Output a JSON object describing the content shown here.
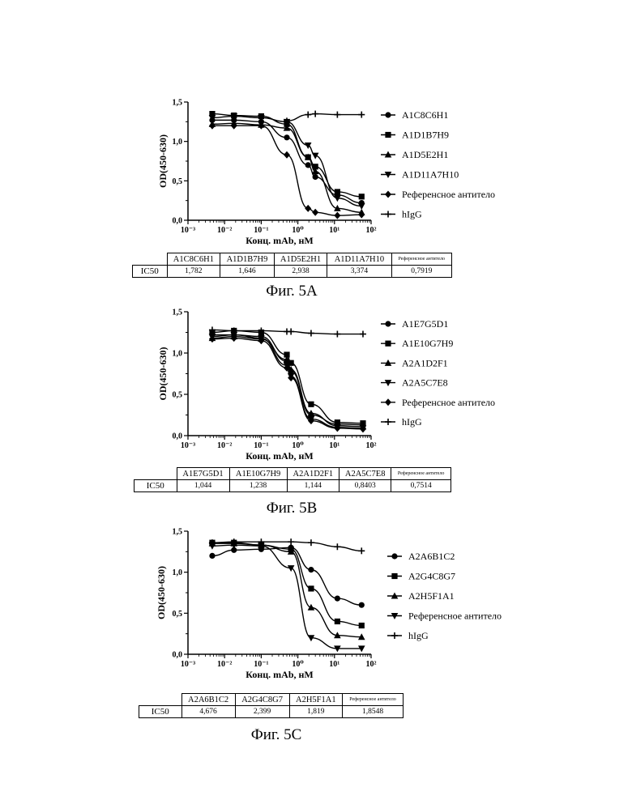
{
  "chart_data": [
    {
      "type": "line",
      "x_scale": "log",
      "xlabel": "Конц. mAb, нМ",
      "ylabel": "OD(450-630)",
      "xlim": [
        0.001,
        100
      ],
      "ylim": [
        0.0,
        1.5
      ],
      "x_ticks": [
        "10⁻³",
        "10⁻²",
        "10⁻¹",
        "10⁰",
        "10¹",
        "10²"
      ],
      "y_ticks": [
        "0,0",
        "0,5",
        "1,0",
        "1,5"
      ],
      "legend_position": "right",
      "x": [
        0.0046,
        0.018,
        0.1,
        0.5,
        1.9,
        3.0,
        12,
        55
      ],
      "series": [
        {
          "name": "A1C8C6H1",
          "marker": "circle",
          "values": [
            1.27,
            1.27,
            1.25,
            1.05,
            0.7,
            0.55,
            0.32,
            0.22
          ]
        },
        {
          "name": "A1D1B7H9",
          "marker": "square",
          "values": [
            1.35,
            1.33,
            1.32,
            1.22,
            0.8,
            0.68,
            0.36,
            0.3
          ]
        },
        {
          "name": "A1D5E2H1",
          "marker": "triangle-up",
          "values": [
            1.22,
            1.23,
            1.21,
            1.17,
            0.8,
            0.62,
            0.15,
            0.1
          ]
        },
        {
          "name": "A1D11A7H10",
          "marker": "triangle-down",
          "values": [
            1.3,
            1.32,
            1.3,
            1.25,
            0.95,
            0.82,
            0.28,
            0.18
          ]
        },
        {
          "name": "Референсное антитело",
          "marker": "diamond",
          "values": [
            1.2,
            1.2,
            1.2,
            0.83,
            0.15,
            0.1,
            0.06,
            0.07
          ]
        },
        {
          "name": "hIgG",
          "marker": "plus",
          "values": [
            null,
            null,
            null,
            1.26,
            1.34,
            1.35,
            1.34,
            1.34
          ]
        }
      ],
      "ic50_table": {
        "row_label": "IC50",
        "headers": [
          "A1C8C6H1",
          "A1D1B7H9",
          "A1D5E2H1",
          "A1D11A7H10",
          "Референсное антитело"
        ],
        "values": [
          "1,782",
          "1,646",
          "2,938",
          "3,374",
          "0,7919"
        ]
      },
      "caption": "Фиг. 5А"
    },
    {
      "type": "line",
      "x_scale": "log",
      "xlabel": "Конц. mAb, нМ",
      "ylabel": "OD(450-630)",
      "xlim": [
        0.001,
        100
      ],
      "ylim": [
        0.0,
        1.5
      ],
      "x_ticks": [
        "10⁻³",
        "10⁻²",
        "10⁻¹",
        "10⁰",
        "10¹",
        "10²"
      ],
      "y_ticks": [
        "0,0",
        "0,5",
        "1,0",
        "1,5"
      ],
      "legend_position": "right",
      "x": [
        0.0046,
        0.018,
        0.1,
        0.5,
        0.65,
        2.3,
        12,
        60
      ],
      "series": [
        {
          "name": "A1E7G5D1",
          "marker": "circle",
          "values": [
            1.22,
            1.22,
            1.2,
            0.9,
            0.78,
            0.25,
            0.14,
            0.13
          ]
        },
        {
          "name": "A1E10G7H9",
          "marker": "square",
          "values": [
            1.25,
            1.27,
            1.25,
            0.98,
            0.88,
            0.38,
            0.16,
            0.15
          ]
        },
        {
          "name": "A2A1D2F1",
          "marker": "triangle-up",
          "values": [
            1.18,
            1.2,
            1.17,
            0.92,
            0.8,
            0.27,
            0.12,
            0.11
          ]
        },
        {
          "name": "A2A5C7E8",
          "marker": "triangle-down",
          "values": [
            1.2,
            1.22,
            1.18,
            0.85,
            0.72,
            0.2,
            0.1,
            0.09
          ]
        },
        {
          "name": "Референсное антитело",
          "marker": "diamond",
          "values": [
            1.17,
            1.18,
            1.15,
            0.82,
            0.7,
            0.18,
            0.09,
            0.08
          ]
        },
        {
          "name": "hIgG",
          "marker": "plus",
          "values": [
            1.28,
            1.27,
            1.27,
            1.26,
            1.26,
            1.24,
            1.23,
            1.23
          ]
        }
      ],
      "ic50_table": {
        "row_label": "IC50",
        "headers": [
          "A1E7G5D1",
          "A1E10G7H9",
          "A2A1D2F1",
          "A2A5C7E8",
          "Референсное антитело"
        ],
        "values": [
          "1,044",
          "1,238",
          "1,144",
          "0,8403",
          "0,7514"
        ]
      },
      "caption": "Фиг. 5В"
    },
    {
      "type": "line",
      "x_scale": "log",
      "xlabel": "Конц. mAb, нМ",
      "ylabel": "OD(450-630)",
      "xlim": [
        0.001,
        100
      ],
      "ylim": [
        0.0,
        1.5
      ],
      "x_ticks": [
        "10⁻³",
        "10⁻²",
        "10⁻¹",
        "10⁰",
        "10¹",
        "10²"
      ],
      "y_ticks": [
        "0,0",
        "0,5",
        "1,0",
        "1,5"
      ],
      "legend_position": "right",
      "x": [
        0.0046,
        0.018,
        0.1,
        0.65,
        2.3,
        12,
        55
      ],
      "series": [
        {
          "name": "A2A6B1C2",
          "marker": "circle",
          "values": [
            1.2,
            1.27,
            1.28,
            1.3,
            1.03,
            0.68,
            0.6
          ]
        },
        {
          "name": "A2G4C8G7",
          "marker": "square",
          "values": [
            1.36,
            1.36,
            1.33,
            1.28,
            0.8,
            0.4,
            0.35
          ]
        },
        {
          "name": "A2H5F1A1",
          "marker": "triangle-up",
          "values": [
            1.35,
            1.35,
            1.33,
            1.25,
            0.57,
            0.23,
            0.21
          ]
        },
        {
          "name": "Референсное антитело",
          "marker": "triangle-down",
          "values": [
            1.32,
            1.33,
            1.32,
            1.05,
            0.2,
            0.07,
            0.07
          ]
        },
        {
          "name": "hIgG",
          "marker": "plus",
          "values": [
            1.36,
            1.37,
            1.37,
            1.37,
            1.36,
            1.31,
            1.26
          ]
        }
      ],
      "ic50_table": {
        "row_label": "IC50",
        "headers": [
          "A2A6B1C2",
          "A2G4C8G7",
          "A2H5F1A1",
          "Референсное антитело"
        ],
        "values": [
          "4,676",
          "2,399",
          "1,819",
          "1,8548"
        ]
      },
      "caption": "Фиг. 5С"
    }
  ]
}
